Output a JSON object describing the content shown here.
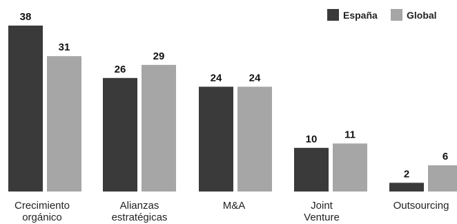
{
  "chart_data": {
    "type": "bar",
    "categories": [
      [
        "Crecimiento",
        "orgánico"
      ],
      [
        "Alianzas",
        "estratégicas"
      ],
      [
        "M&A"
      ],
      [
        "Joint",
        "Venture"
      ],
      [
        "Outsourcing"
      ]
    ],
    "series": [
      {
        "name": "España",
        "values": [
          38,
          26,
          24,
          10,
          2
        ],
        "color": "#3a3a3a"
      },
      {
        "name": "Global",
        "values": [
          31,
          29,
          24,
          11,
          6
        ],
        "color": "#a6a6a6"
      }
    ],
    "ylim": [
      0,
      38
    ],
    "grid": false,
    "legend_position": "top-right"
  }
}
